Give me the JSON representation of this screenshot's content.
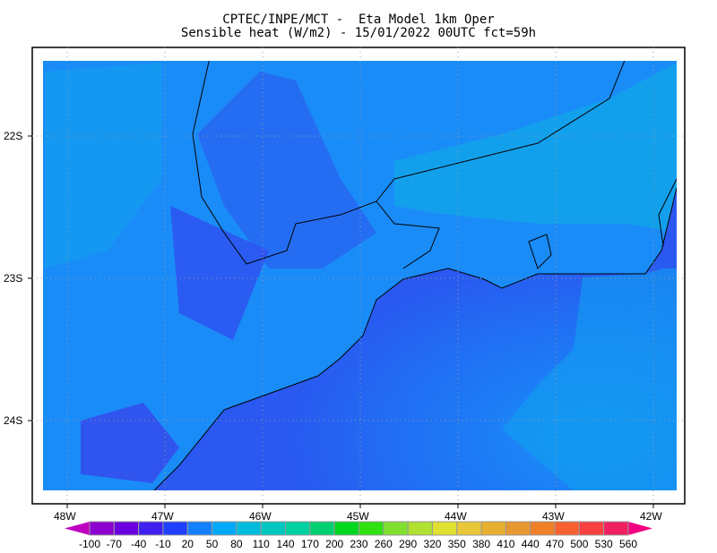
{
  "title": {
    "line1": "CPTEC/INPE/MCT -  Eta Model 1km Oper",
    "line2": "Sensible heat (W/m2) - 15/01/2022 00UTC fct=59h"
  },
  "map": {
    "lon_labels": [
      "48W",
      "47W",
      "46W",
      "45W",
      "44W",
      "43W",
      "42W"
    ],
    "lat_labels": [
      "22S",
      "23S",
      "24S"
    ],
    "grid": "dotted",
    "colors": {
      "land": "#1e8cf8",
      "ocean": "#2a58f0",
      "coastline": "#000000"
    }
  },
  "colorbar": {
    "labels": [
      "-100",
      "-70",
      "-40",
      "-10",
      "20",
      "50",
      "80",
      "110",
      "140",
      "170",
      "200",
      "230",
      "260",
      "290",
      "320",
      "350",
      "380",
      "410",
      "440",
      "470",
      "500",
      "530",
      "560"
    ],
    "colors": [
      "#8c00d0",
      "#6a00e0",
      "#4020f0",
      "#2040ff",
      "#1480ff",
      "#00a8f8",
      "#00bcdc",
      "#00c8c0",
      "#00d0a0",
      "#00d070",
      "#00d820",
      "#30e010",
      "#80e030",
      "#b0e030",
      "#e0e030",
      "#e8c838",
      "#e8b030",
      "#e89830",
      "#f08028",
      "#f86030",
      "#f84040",
      "#f02060"
    ],
    "under_color": "#c000c0",
    "over_color": "#f00080"
  }
}
